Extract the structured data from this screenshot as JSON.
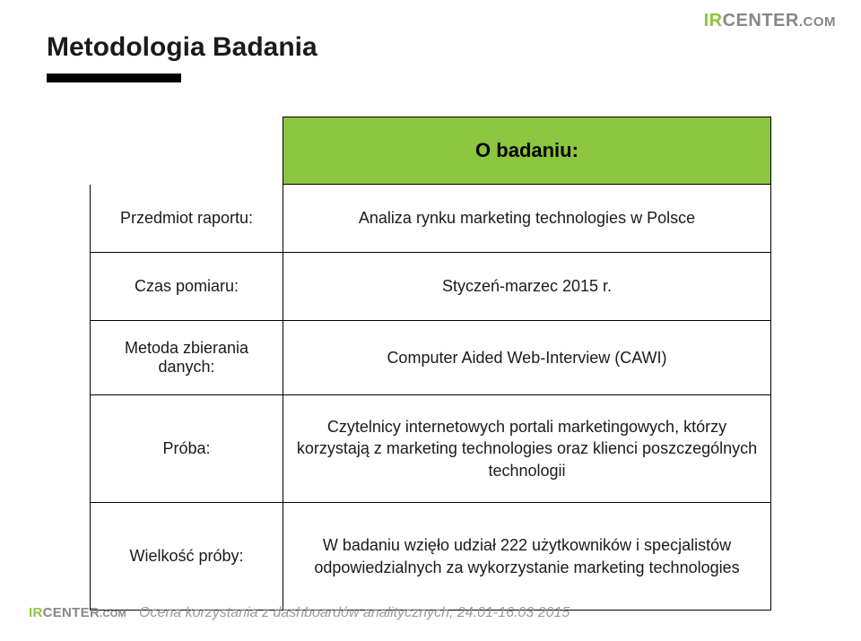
{
  "branding": {
    "logo_ir": "IR",
    "logo_center": "CENTER",
    "logo_com": ".COM"
  },
  "title": "Metodologia Badania",
  "colors": {
    "header_bg": "#8cc63f",
    "border": "#000000",
    "text": "#1a1a1a",
    "footer_text": "#9a9a9a",
    "logo_accent": "#8cc63f",
    "logo_muted": "#888888",
    "background": "#ffffff"
  },
  "table": {
    "header": "O badaniu:",
    "rows": [
      {
        "label": "Przedmiot raportu:",
        "value": "Analiza rynku marketing technologies w Polsce"
      },
      {
        "label": "Czas pomiaru:",
        "value": "Styczeń-marzec 2015 r."
      },
      {
        "label": "Metoda zbierania danych:",
        "value": "Computer Aided Web-Interview (CAWI)"
      },
      {
        "label": "Próba:",
        "value": "Czytelnicy internetowych portali marketingowych, którzy korzystają z marketing technologies oraz klienci poszczególnych technologii"
      },
      {
        "label": "Wielkość próby:",
        "value": "W badaniu wzięło udział 222 użytkowników i specjalistów odpowiedzialnych za wykorzystanie marketing technologies"
      }
    ]
  },
  "footer": "Ocena korzystania z dashboardów analitycznych, 24.01-16.03 2015"
}
